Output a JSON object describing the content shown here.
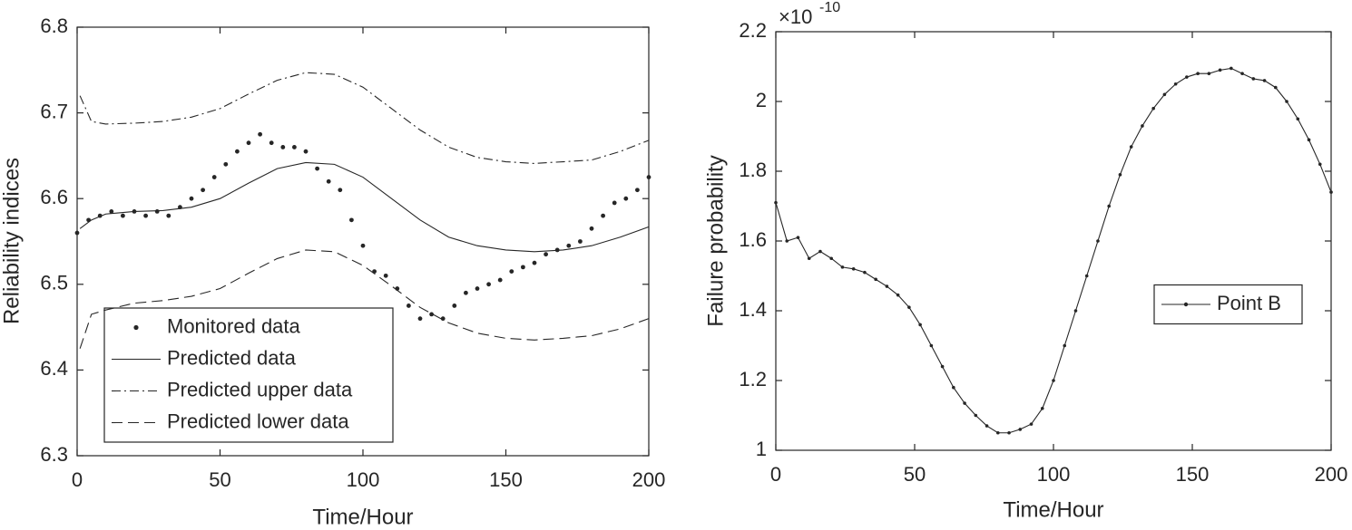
{
  "chart_data": [
    {
      "type": "line",
      "ylabel": "Reliability indices",
      "xlabel": "Time/Hour",
      "xlim": [
        0,
        200
      ],
      "xticks": [
        0,
        50,
        100,
        150,
        200
      ],
      "ylim": [
        6.3,
        6.8
      ],
      "yticks": [
        6.3,
        6.4,
        6.5,
        6.6,
        6.7,
        6.8
      ],
      "legend": "southwest",
      "series": [
        {
          "name": "Monitored data",
          "color": "#262626",
          "style": "markers",
          "x": [
            0,
            4,
            8,
            12,
            16,
            20,
            24,
            28,
            32,
            36,
            40,
            44,
            48,
            52,
            56,
            60,
            64,
            68,
            72,
            76,
            80,
            84,
            88,
            92,
            96,
            100,
            104,
            108,
            112,
            116,
            120,
            124,
            128,
            132,
            136,
            140,
            144,
            148,
            152,
            156,
            160,
            164,
            168,
            172,
            176,
            180,
            184,
            188,
            192,
            196,
            200
          ],
          "values": [
            6.56,
            6.575,
            6.58,
            6.585,
            6.58,
            6.585,
            6.58,
            6.585,
            6.58,
            6.59,
            6.6,
            6.61,
            6.625,
            6.64,
            6.655,
            6.665,
            6.675,
            6.665,
            6.66,
            6.66,
            6.655,
            6.635,
            6.62,
            6.61,
            6.575,
            6.545,
            6.515,
            6.51,
            6.495,
            6.475,
            6.46,
            6.465,
            6.46,
            6.475,
            6.49,
            6.495,
            6.5,
            6.505,
            6.515,
            6.52,
            6.525,
            6.535,
            6.54,
            6.545,
            6.55,
            6.565,
            6.58,
            6.595,
            6.6,
            6.61,
            6.625
          ]
        },
        {
          "name": "Predicted data",
          "color": "#262626",
          "style": "solid",
          "x": [
            1,
            5,
            10,
            20,
            30,
            40,
            50,
            60,
            70,
            80,
            90,
            100,
            110,
            120,
            130,
            140,
            150,
            160,
            170,
            180,
            190,
            200
          ],
          "values": [
            6.565,
            6.575,
            6.582,
            6.585,
            6.586,
            6.59,
            6.6,
            6.618,
            6.635,
            6.642,
            6.64,
            6.625,
            6.6,
            6.575,
            6.555,
            6.545,
            6.54,
            6.538,
            6.54,
            6.545,
            6.555,
            6.567
          ]
        },
        {
          "name": "Predicted upper data",
          "color": "#262626",
          "style": "dashdot",
          "x": [
            1,
            5,
            10,
            20,
            30,
            40,
            50,
            60,
            70,
            80,
            90,
            100,
            110,
            120,
            130,
            140,
            150,
            160,
            170,
            180,
            190,
            200
          ],
          "values": [
            6.72,
            6.69,
            6.687,
            6.688,
            6.69,
            6.695,
            6.705,
            6.722,
            6.738,
            6.747,
            6.745,
            6.73,
            6.705,
            6.68,
            6.66,
            6.648,
            6.643,
            6.641,
            6.643,
            6.645,
            6.655,
            6.668
          ]
        },
        {
          "name": "Predicted lower data",
          "color": "#262626",
          "style": "dashed",
          "x": [
            1,
            5,
            10,
            20,
            30,
            40,
            50,
            60,
            70,
            80,
            90,
            100,
            110,
            120,
            130,
            140,
            150,
            160,
            170,
            180,
            190,
            200
          ],
          "values": [
            6.425,
            6.465,
            6.47,
            6.478,
            6.481,
            6.486,
            6.495,
            6.513,
            6.53,
            6.54,
            6.538,
            6.522,
            6.498,
            6.473,
            6.455,
            6.443,
            6.437,
            6.435,
            6.437,
            6.44,
            6.448,
            6.46
          ]
        }
      ]
    },
    {
      "type": "line",
      "ylabel": "Failure probability",
      "xlabel": "Time/Hour",
      "exponent_base": "×10",
      "exponent": "-10",
      "xlim": [
        0,
        200
      ],
      "xticks": [
        0,
        50,
        100,
        150,
        200
      ],
      "ylim": [
        1,
        2.2
      ],
      "yticks": [
        1,
        1.2,
        1.4,
        1.6,
        1.8,
        2,
        2.2
      ],
      "legend": "east",
      "series": [
        {
          "name": "Point B",
          "color": "#262626",
          "style": "solid-markers",
          "x": [
            0,
            4,
            8,
            12,
            16,
            20,
            24,
            28,
            32,
            36,
            40,
            44,
            48,
            52,
            56,
            60,
            64,
            68,
            72,
            76,
            80,
            84,
            88,
            92,
            96,
            100,
            104,
            108,
            112,
            116,
            120,
            124,
            128,
            132,
            136,
            140,
            144,
            148,
            152,
            156,
            160,
            164,
            168,
            172,
            176,
            180,
            184,
            188,
            192,
            196,
            200
          ],
          "values": [
            1.71,
            1.6,
            1.61,
            1.55,
            1.57,
            1.55,
            1.525,
            1.52,
            1.51,
            1.49,
            1.47,
            1.445,
            1.41,
            1.36,
            1.3,
            1.24,
            1.18,
            1.135,
            1.1,
            1.07,
            1.05,
            1.05,
            1.06,
            1.075,
            1.12,
            1.2,
            1.3,
            1.4,
            1.5,
            1.6,
            1.7,
            1.79,
            1.87,
            1.93,
            1.98,
            2.02,
            2.05,
            2.07,
            2.08,
            2.08,
            2.09,
            2.095,
            2.08,
            2.065,
            2.06,
            2.04,
            2.0,
            1.95,
            1.89,
            1.82,
            1.74
          ]
        }
      ]
    }
  ]
}
